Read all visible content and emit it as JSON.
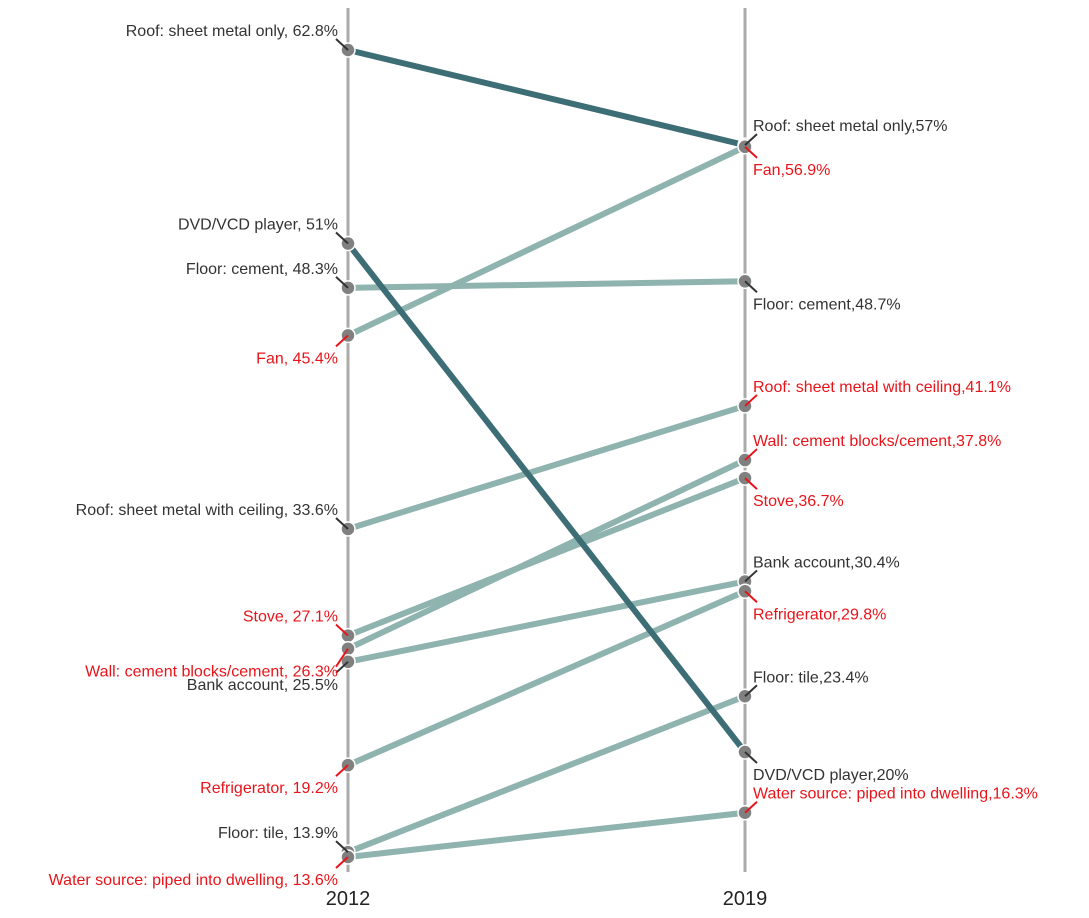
{
  "chart_data": {
    "type": "slope",
    "x": [
      "2012",
      "2019"
    ],
    "colors": {
      "highlight_line": "#3d6e76",
      "base_line": "#8fb3af",
      "axis": "#aaaaaa",
      "point": "#808080",
      "label_dark": "#333333",
      "label_red": "#e8141a"
    },
    "series": [
      {
        "name": "Roof: sheet metal only",
        "values": [
          62.8,
          57
        ],
        "style": "highlight",
        "label_colors": [
          "dark",
          "dark"
        ],
        "labels": [
          "Roof: sheet metal only, 62.8%",
          "Roof: sheet metal only,57%"
        ]
      },
      {
        "name": "DVD/VCD player",
        "values": [
          51,
          20
        ],
        "style": "highlight",
        "label_colors": [
          "dark",
          "dark"
        ],
        "labels": [
          "DVD/VCD player, 51%",
          "DVD/VCD player,20%"
        ]
      },
      {
        "name": "Floor: cement",
        "values": [
          48.3,
          48.7
        ],
        "style": "base",
        "label_colors": [
          "dark",
          "dark"
        ],
        "labels": [
          "Floor: cement, 48.3%",
          "Floor: cement,48.7%"
        ]
      },
      {
        "name": "Fan",
        "values": [
          45.4,
          56.9
        ],
        "style": "base",
        "label_colors": [
          "red",
          "red"
        ],
        "labels": [
          "Fan, 45.4%",
          "Fan,56.9%"
        ]
      },
      {
        "name": "Roof: sheet metal with ceiling",
        "values": [
          33.6,
          41.1
        ],
        "style": "base",
        "label_colors": [
          "dark",
          "red"
        ],
        "labels": [
          "Roof: sheet metal with ceiling, 33.6%",
          "Roof: sheet metal with ceiling,41.1%"
        ]
      },
      {
        "name": "Stove",
        "values": [
          27.1,
          36.7
        ],
        "style": "base",
        "label_colors": [
          "red",
          "red"
        ],
        "labels": [
          "Stove, 27.1%",
          "Stove,36.7%"
        ]
      },
      {
        "name": "Wall: cement blocks/cement",
        "values": [
          26.3,
          37.8
        ],
        "style": "base",
        "label_colors": [
          "red",
          "red"
        ],
        "labels": [
          "Wall: cement blocks/cement, 26.3%",
          "Wall: cement blocks/cement,37.8%"
        ]
      },
      {
        "name": "Bank account",
        "values": [
          25.5,
          30.4
        ],
        "style": "base",
        "label_colors": [
          "dark",
          "dark"
        ],
        "labels": [
          "Bank account, 25.5%",
          "Bank account,30.4%"
        ]
      },
      {
        "name": "Refrigerator",
        "values": [
          19.2,
          29.8
        ],
        "style": "base",
        "label_colors": [
          "red",
          "red"
        ],
        "labels": [
          "Refrigerator, 19.2%",
          "Refrigerator,29.8%"
        ]
      },
      {
        "name": "Floor: tile",
        "values": [
          13.9,
          23.4
        ],
        "style": "base",
        "label_colors": [
          "dark",
          "dark"
        ],
        "labels": [
          "Floor: tile, 13.9%",
          "Floor: tile,23.4%"
        ]
      },
      {
        "name": "Water source: piped into dwelling",
        "values": [
          13.6,
          16.3
        ],
        "style": "base",
        "label_colors": [
          "red",
          "red"
        ],
        "labels": [
          "Water source: piped into dwelling, 13.6%",
          "Water source: piped into dwelling,16.3%"
        ]
      }
    ],
    "ylim": [
      13.6,
      62.8
    ],
    "legend": "none",
    "grid": false
  }
}
